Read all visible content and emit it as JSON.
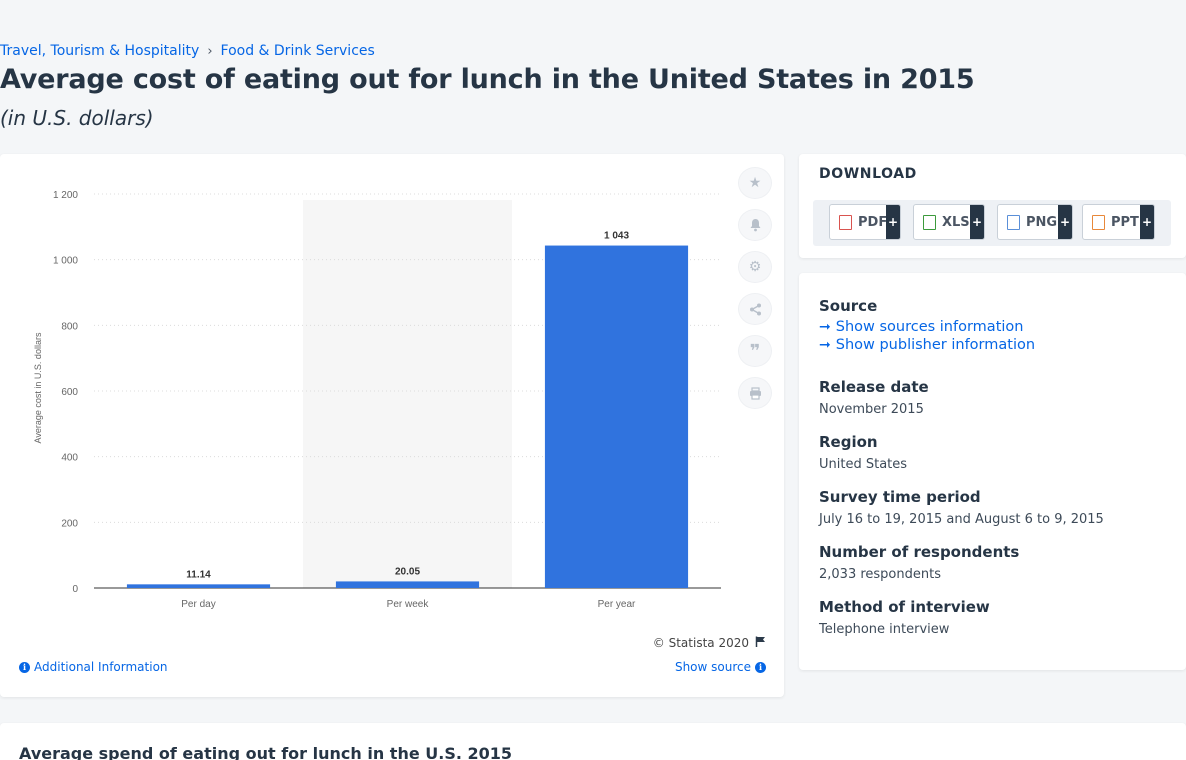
{
  "breadcrumb": {
    "items": [
      "Travel, Tourism & Hospitality",
      "Food & Drink Services"
    ],
    "separator": "›"
  },
  "page": {
    "title": "Average cost of eating out for lunch in the United States in 2015",
    "subtitle": "(in U.S. dollars)"
  },
  "chart_data": {
    "type": "bar",
    "categories": [
      "Per day",
      "Per week",
      "Per year"
    ],
    "values": [
      11.14,
      20.05,
      1043
    ],
    "value_labels": [
      "11.14",
      "20.05",
      "1 043"
    ],
    "title": "",
    "xlabel": "",
    "ylabel": "Average cost in U.S. dollars",
    "ylim": [
      0,
      1200
    ],
    "yticks": [
      0,
      200,
      400,
      600,
      800,
      1000,
      1200
    ],
    "ytick_labels": [
      "0",
      "200",
      "400",
      "600",
      "800",
      "1 000",
      "1 200"
    ],
    "highlighted_category": "Per week",
    "grid": true,
    "legend": "none",
    "bar_color": "#3073de"
  },
  "chart_footer": {
    "copyright": "© Statista 2020",
    "additional_info": "Additional Information",
    "show_source": "Show source"
  },
  "tools": [
    "star-icon",
    "bell-icon",
    "gear-icon",
    "share-icon",
    "quote-icon",
    "print-icon"
  ],
  "download": {
    "title": "DOWNLOAD",
    "formats": [
      {
        "label": "PDF",
        "color": "#d9534f"
      },
      {
        "label": "XLS",
        "color": "#3c9a3c"
      },
      {
        "label": "PNG",
        "color": "#5a8fd8"
      },
      {
        "label": "PPT",
        "color": "#e8883a"
      }
    ],
    "plus": "+"
  },
  "meta": {
    "source_label": "Source",
    "show_sources": "Show sources information",
    "show_publisher": "Show publisher information",
    "release_date_label": "Release date",
    "release_date": "November 2015",
    "region_label": "Region",
    "region": "United States",
    "survey_period_label": "Survey time period",
    "survey_period": "July 16 to 19, 2015 and August 6 to 9, 2015",
    "respondents_label": "Number of respondents",
    "respondents": "2,033 respondents",
    "method_label": "Method of interview",
    "method": "Telephone interview"
  },
  "related": {
    "title": "Average spend of eating out for lunch in the U.S. 2015"
  }
}
